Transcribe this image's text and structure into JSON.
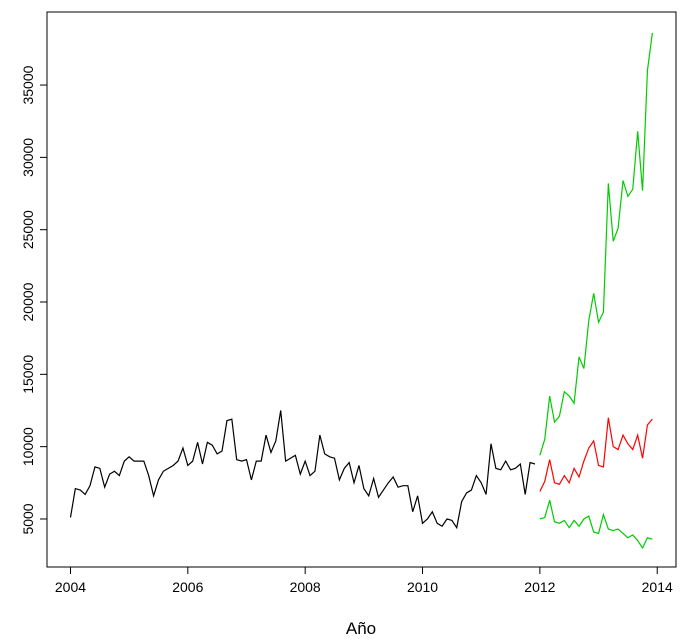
{
  "chart_data": {
    "type": "line",
    "xlabel": "Año",
    "xlim": [
      2003.6,
      2014.32
    ],
    "ylim": [
      1680,
      40050
    ],
    "xticks": [
      2004,
      2006,
      2008,
      2010,
      2012,
      2014
    ],
    "yticks": [
      5000,
      10000,
      15000,
      20000,
      25000,
      30000,
      35000
    ],
    "series": [
      {
        "color": "#000000",
        "x": [
          2004,
          2004.083,
          2004.167,
          2004.25,
          2004.333,
          2004.417,
          2004.5,
          2004.583,
          2004.667,
          2004.75,
          2004.833,
          2004.917,
          2005,
          2005.083,
          2005.167,
          2005.25,
          2005.333,
          2005.417,
          2005.5,
          2005.583,
          2005.667,
          2005.75,
          2005.833,
          2005.917,
          2006,
          2006.083,
          2006.167,
          2006.25,
          2006.333,
          2006.417,
          2006.5,
          2006.583,
          2006.667,
          2006.75,
          2006.833,
          2006.917,
          2007,
          2007.083,
          2007.167,
          2007.25,
          2007.333,
          2007.417,
          2007.5,
          2007.583,
          2007.667,
          2007.75,
          2007.833,
          2007.917,
          2008,
          2008.083,
          2008.167,
          2008.25,
          2008.333,
          2008.417,
          2008.5,
          2008.583,
          2008.667,
          2008.75,
          2008.833,
          2008.917,
          2009,
          2009.083,
          2009.167,
          2009.25,
          2009.333,
          2009.417,
          2009.5,
          2009.583,
          2009.667,
          2009.75,
          2009.833,
          2009.917,
          2010,
          2010.083,
          2010.167,
          2010.25,
          2010.333,
          2010.417,
          2010.5,
          2010.583,
          2010.667,
          2010.75,
          2010.833,
          2010.917,
          2011,
          2011.083,
          2011.167,
          2011.25,
          2011.333,
          2011.417,
          2011.5,
          2011.583,
          2011.667,
          2011.75,
          2011.833,
          2011.917
        ],
        "values": [
          5100,
          7100,
          7000,
          6700,
          7300,
          8600,
          8500,
          7200,
          8100,
          8300,
          8000,
          9000,
          9300,
          9000,
          9000,
          9000,
          8000,
          6600,
          7700,
          8300,
          8500,
          8700,
          9000,
          9900,
          8700,
          9000,
          10300,
          8800,
          10300,
          10100,
          9500,
          9700,
          11800,
          11900,
          9100,
          9000,
          9100,
          7700,
          9000,
          9000,
          10800,
          9600,
          10400,
          12500,
          9000,
          9200,
          9400,
          8100,
          9000,
          8000,
          8300,
          10800,
          9500,
          9300,
          9200,
          7700,
          8500,
          8900,
          7500,
          8700,
          7100,
          6600,
          7800,
          6500,
          7000,
          7500,
          7900,
          7200,
          7300,
          7300,
          5500,
          6600,
          4700,
          5000,
          5500,
          4700,
          4500,
          5000,
          4900,
          4400,
          6200,
          6800,
          7000,
          8000,
          7500,
          6700,
          10200,
          8500,
          8400,
          9000,
          8400,
          8500,
          8800,
          6700,
          8900,
          8800
        ]
      },
      {
        "color": "#ff0000",
        "x": [
          2012,
          2012.083,
          2012.167,
          2012.25,
          2012.333,
          2012.417,
          2012.5,
          2012.583,
          2012.667,
          2012.75,
          2012.833,
          2012.917,
          2013,
          2013.083,
          2013.167,
          2013.25,
          2013.333,
          2013.417,
          2013.5,
          2013.583,
          2013.667,
          2013.75,
          2013.833,
          2013.917
        ],
        "values": [
          6900,
          7600,
          9100,
          7500,
          7400,
          8000,
          7500,
          8500,
          7900,
          9000,
          9900,
          10400,
          8700,
          8600,
          12000,
          10000,
          9800,
          10800,
          10200,
          9800,
          10800,
          9200,
          11500,
          11900
        ]
      },
      {
        "color": "#00cc00",
        "x": [
          2012,
          2012.083,
          2012.167,
          2012.25,
          2012.333,
          2012.417,
          2012.5,
          2012.583,
          2012.667,
          2012.75,
          2012.833,
          2012.917,
          2013,
          2013.083,
          2013.167,
          2013.25,
          2013.333,
          2013.417,
          2013.5,
          2013.583,
          2013.667,
          2013.75,
          2013.833,
          2013.917
        ],
        "values": [
          9400,
          10500,
          13500,
          11700,
          12100,
          13800,
          13500,
          13000,
          16200,
          15400,
          18700,
          20600,
          18600,
          19300,
          28200,
          24200,
          25100,
          28400,
          27300,
          27800,
          31800,
          27700,
          36000,
          38600
        ]
      },
      {
        "color": "#00cc00",
        "x": [
          2012,
          2012.083,
          2012.167,
          2012.25,
          2012.333,
          2012.417,
          2012.5,
          2012.583,
          2012.667,
          2012.75,
          2012.833,
          2012.917,
          2013,
          2013.083,
          2013.167,
          2013.25,
          2013.333,
          2013.417,
          2013.5,
          2013.583,
          2013.667,
          2013.75,
          2013.833,
          2013.917
        ],
        "values": [
          5000,
          5100,
          6300,
          4800,
          4700,
          4900,
          4400,
          4900,
          4500,
          5000,
          5200,
          4100,
          4000,
          5300,
          4300,
          4200,
          4300,
          4000,
          3700,
          3900,
          3500,
          3000,
          3700,
          3600
        ]
      }
    ]
  }
}
